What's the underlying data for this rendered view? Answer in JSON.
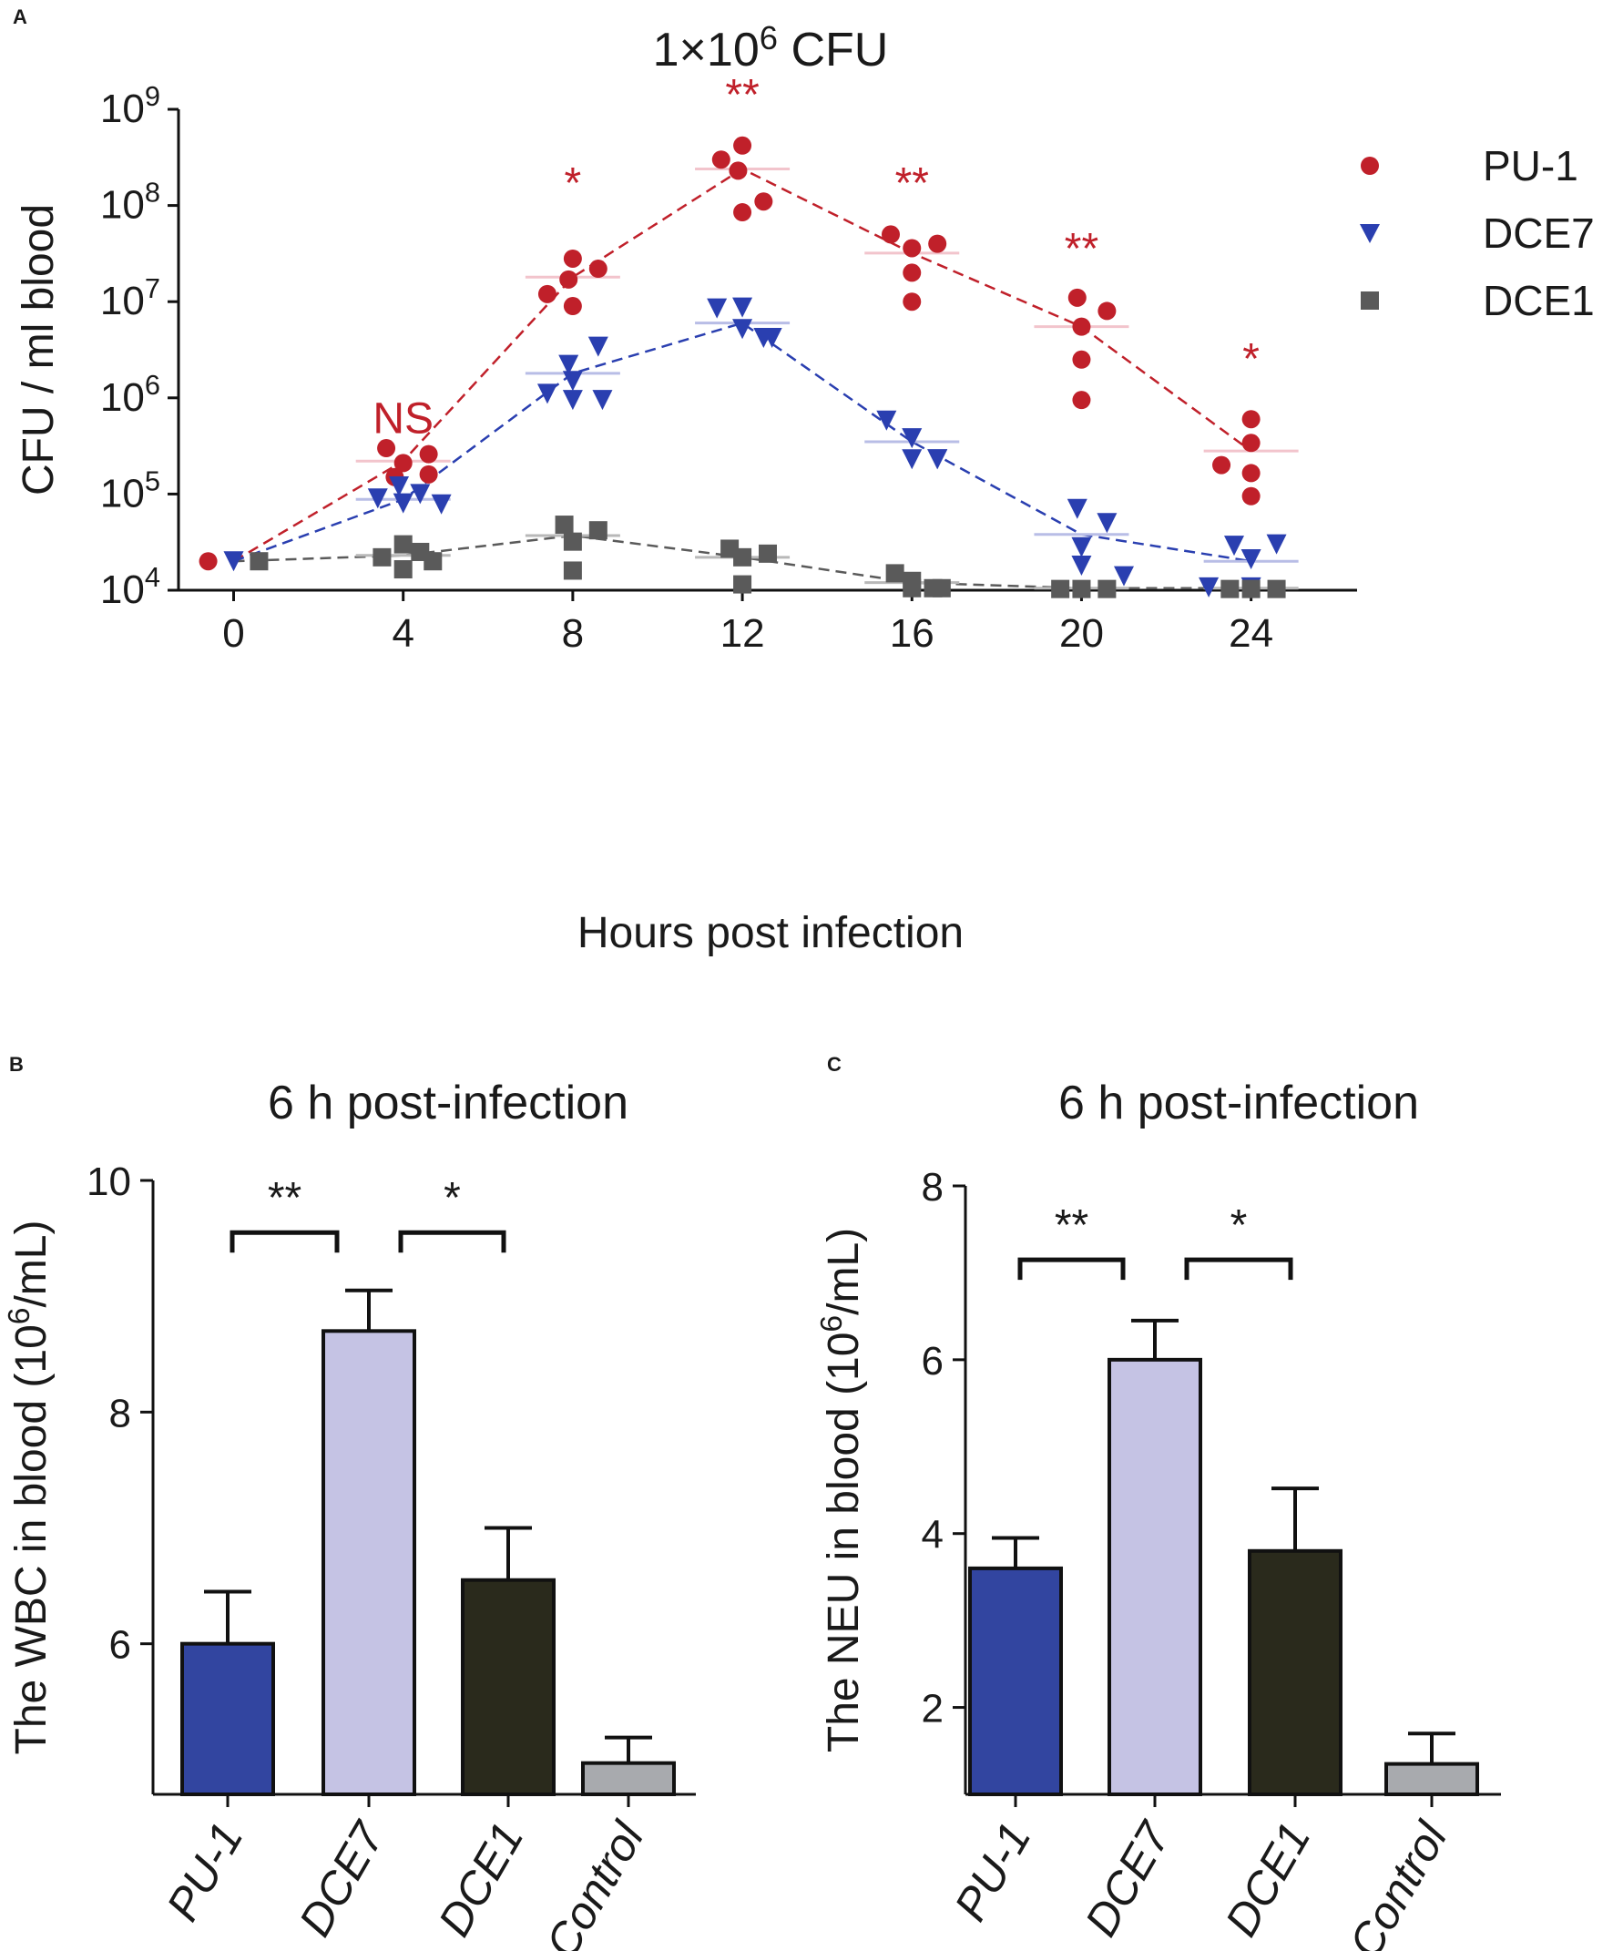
{
  "panels": {
    "a": "A",
    "b": "B",
    "c": "C"
  },
  "chart_data": [
    {
      "panel": "A",
      "type": "scatter",
      "title_base": "1×10",
      "title_exp": "6",
      "title_unit": "CFU",
      "xlabel": "Hours post infection",
      "ylabel": "CFU / ml blood",
      "y_scale": "log10",
      "ylim": [
        10000,
        1000000000
      ],
      "y_ticks": [
        {
          "base": "10",
          "exp": "4",
          "value": 10000
        },
        {
          "base": "10",
          "exp": "5",
          "value": 100000
        },
        {
          "base": "10",
          "exp": "6",
          "value": 1000000
        },
        {
          "base": "10",
          "exp": "7",
          "value": 10000000
        },
        {
          "base": "10",
          "exp": "8",
          "value": 100000000
        },
        {
          "base": "10",
          "exp": "9",
          "value": 1000000000
        }
      ],
      "x_ticks": [
        "0",
        "4",
        "8",
        "12",
        "16",
        "20",
        "24"
      ],
      "xlim": [
        -1.3,
        26.5
      ],
      "legend_position": "top-right",
      "series": [
        {
          "name": "PU-1",
          "marker": "circle",
          "color": "#c0202a",
          "mean_color": "#f2c4cc",
          "means": [
            20000,
            220000,
            18000000,
            240000000,
            32000000,
            5500000,
            280000
          ],
          "points": [
            [
              [
                -0.6,
                20000
              ]
            ],
            [
              [
                3.6,
                300000
              ],
              [
                3.8,
                150000
              ],
              [
                4.0,
                210000
              ],
              [
                4.6,
                260000
              ],
              [
                4.6,
                160000
              ]
            ],
            [
              [
                7.4,
                12000000
              ],
              [
                7.9,
                17000000
              ],
              [
                8.0,
                28000000
              ],
              [
                8.0,
                9000000
              ],
              [
                8.6,
                22000000
              ]
            ],
            [
              [
                11.5,
                300000000
              ],
              [
                11.9,
                230000000
              ],
              [
                12.0,
                420000000
              ],
              [
                12.0,
                85000000
              ],
              [
                12.5,
                110000000
              ]
            ],
            [
              [
                15.5,
                50000000
              ],
              [
                16.0,
                36000000
              ],
              [
                16.0,
                20000000
              ],
              [
                16.0,
                10000000
              ],
              [
                16.6,
                40000000
              ]
            ],
            [
              [
                19.9,
                11000000
              ],
              [
                20.0,
                5500000
              ],
              [
                20.0,
                2500000
              ],
              [
                20.0,
                950000
              ],
              [
                20.6,
                8000000
              ]
            ],
            [
              [
                23.3,
                200000
              ],
              [
                24.0,
                600000
              ],
              [
                24.0,
                340000
              ],
              [
                24.0,
                165000
              ],
              [
                24.0,
                95000
              ]
            ]
          ]
        },
        {
          "name": "DCE7",
          "marker": "triangle-down",
          "color": "#2a3fb0",
          "mean_color": "#b8bde6",
          "means": [
            20000,
            88000,
            1800000,
            6000000,
            350000,
            38000,
            20000
          ],
          "points": [
            [
              [
                0.0,
                20000
              ]
            ],
            [
              [
                3.4,
                90000
              ],
              [
                3.9,
                120000
              ],
              [
                4.0,
                80000
              ],
              [
                4.4,
                100000
              ],
              [
                4.9,
                78000
              ]
            ],
            [
              [
                7.4,
                1100000
              ],
              [
                7.9,
                2200000
              ],
              [
                8.0,
                1500000
              ],
              [
                8.0,
                950000
              ],
              [
                8.6,
                3400000
              ],
              [
                8.7,
                950000
              ]
            ],
            [
              [
                11.4,
                8500000
              ],
              [
                12.0,
                8700000
              ],
              [
                12.0,
                5200000
              ],
              [
                12.5,
                4200000
              ],
              [
                12.7,
                4200000
              ]
            ],
            [
              [
                15.4,
                580000
              ],
              [
                16.0,
                380000
              ],
              [
                16.0,
                230000
              ],
              [
                16.6,
                230000
              ],
              [
                16.6,
                230000
              ]
            ],
            [
              [
                19.9,
                70000
              ],
              [
                20.0,
                28000
              ],
              [
                20.0,
                18000
              ],
              [
                20.6,
                50000
              ],
              [
                21.0,
                14000
              ]
            ],
            [
              [
                23.0,
                10700
              ],
              [
                23.6,
                29000
              ],
              [
                24.0,
                21000
              ],
              [
                24.0,
                10700
              ],
              [
                24.6,
                30000
              ]
            ]
          ]
        },
        {
          "name": "DCE1",
          "marker": "square",
          "color": "#5a5a5a",
          "mean_color": "#b8b8b8",
          "means": [
            20000,
            23000,
            37000,
            22000,
            12000,
            10500,
            10500
          ],
          "points": [
            [
              [
                0.6,
                20000
              ]
            ],
            [
              [
                3.5,
                22000
              ],
              [
                4.0,
                30000
              ],
              [
                4.0,
                16500
              ],
              [
                4.4,
                25000
              ],
              [
                4.7,
                20000
              ]
            ],
            [
              [
                7.8,
                48000
              ],
              [
                8.0,
                32000
              ],
              [
                8.0,
                16000
              ],
              [
                8.6,
                42000
              ]
            ],
            [
              [
                11.7,
                27000
              ],
              [
                12.0,
                22000
              ],
              [
                12.0,
                11500
              ],
              [
                12.6,
                24000
              ]
            ],
            [
              [
                15.6,
                15000
              ],
              [
                16.0,
                12500
              ],
              [
                16.0,
                10500
              ],
              [
                16.5,
                10500
              ],
              [
                16.7,
                10500
              ]
            ],
            [
              [
                19.5,
                10300
              ],
              [
                20.0,
                10300
              ],
              [
                20.6,
                10300
              ]
            ],
            [
              [
                23.5,
                10300
              ],
              [
                24.0,
                10300
              ],
              [
                24.6,
                10300
              ]
            ]
          ]
        }
      ],
      "annotations": [
        {
          "x": 4,
          "text": "NS",
          "value": 430000
        },
        {
          "x": 8,
          "text": "*",
          "value": 120000000
        },
        {
          "x": 12,
          "text": "**",
          "value": 1000000000
        },
        {
          "x": 16,
          "text": "**",
          "value": 120000000
        },
        {
          "x": 20,
          "text": "**",
          "value": 25000000
        },
        {
          "x": 24,
          "text": "*",
          "value": 1800000
        }
      ]
    },
    {
      "panel": "B",
      "type": "bar",
      "title": "6 h post-infection",
      "ylabel_prefix": "The WBC in blood (10",
      "ylabel_exp": "6",
      "ylabel_suffix": "/mL)",
      "ylim": [
        4.7,
        10
      ],
      "y_ticks": [
        "6",
        "8",
        "10"
      ],
      "y_tick_values": [
        6,
        8,
        10
      ],
      "categories": [
        "PU-1",
        "DCE7",
        "DCE1",
        "Control"
      ],
      "values": [
        6.0,
        8.7,
        6.55,
        4.97
      ],
      "errors": [
        0.45,
        0.35,
        0.45,
        0.22
      ],
      "colors": [
        "#3245a0",
        "#c5c3e4",
        "#2a2a1c",
        "#a8aaae"
      ],
      "brackets": [
        {
          "from": 0,
          "to": 1,
          "text": "**",
          "value": 9.55
        },
        {
          "from": 1,
          "to": 2,
          "text": "*",
          "value": 9.55
        }
      ]
    },
    {
      "panel": "C",
      "type": "bar",
      "title": "6 h post-infection",
      "ylabel_prefix": "The NEU in blood (10",
      "ylabel_exp": "6",
      "ylabel_suffix": "/mL)",
      "ylim": [
        1.0,
        8.0
      ],
      "y_ticks": [
        "2",
        "4",
        "6",
        "8"
      ],
      "y_tick_values": [
        2,
        4,
        6,
        8
      ],
      "categories": [
        "PU-1",
        "DCE7",
        "DCE1",
        "Control"
      ],
      "values": [
        3.6,
        6.0,
        3.8,
        1.35
      ],
      "errors": [
        0.35,
        0.45,
        0.72,
        0.35
      ],
      "colors": [
        "#3245a0",
        "#c5c3e4",
        "#2a2a1c",
        "#a8aaae"
      ],
      "brackets": [
        {
          "from": 0,
          "to": 1,
          "text": "**",
          "value": 7.15
        },
        {
          "from": 1,
          "to": 2,
          "text": "*",
          "value": 7.15
        }
      ]
    }
  ]
}
